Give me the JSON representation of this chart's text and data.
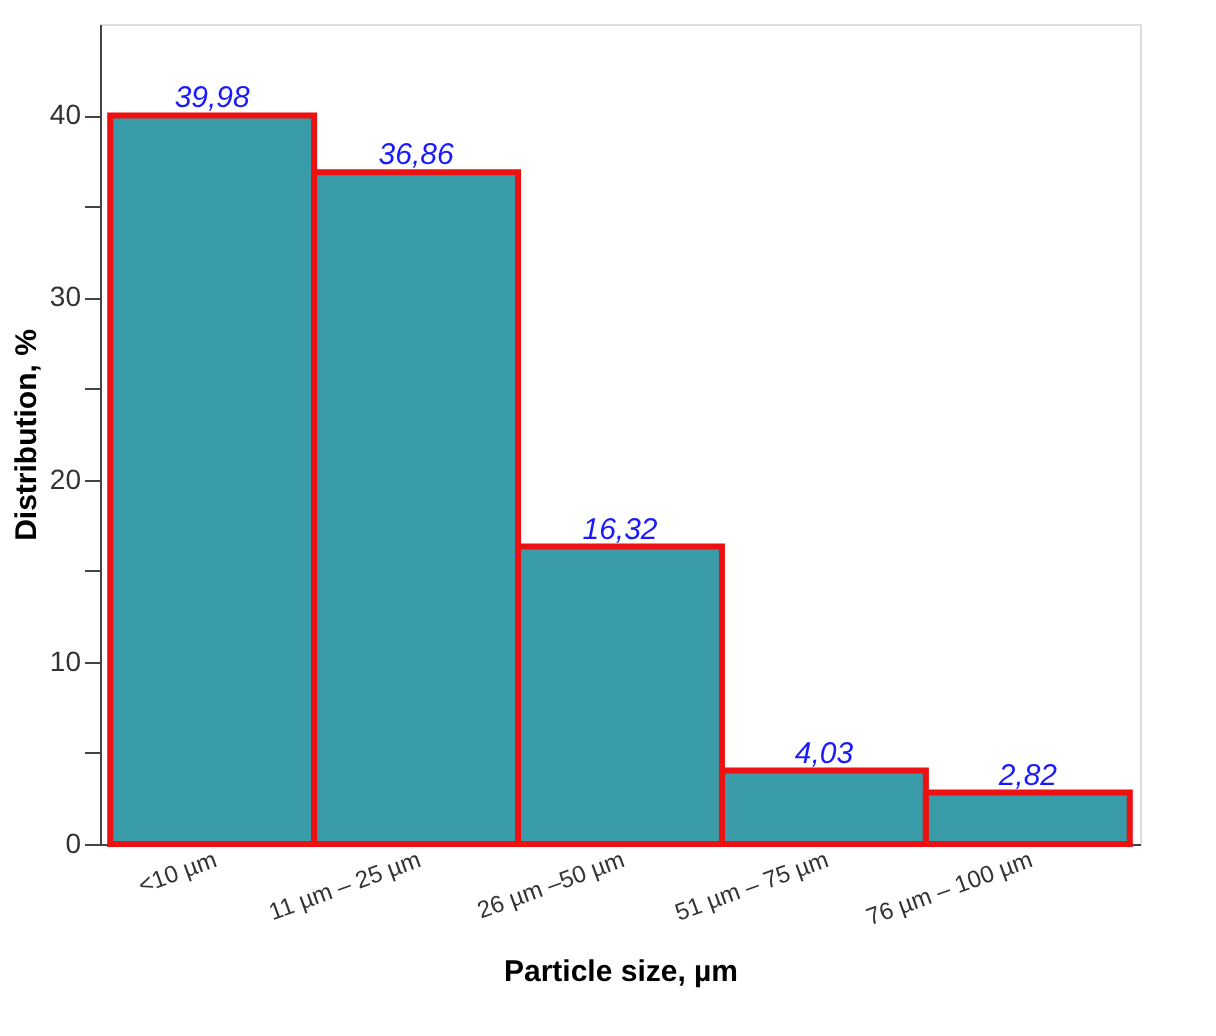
{
  "chart_data": {
    "type": "bar",
    "xlabel": "Particle size, µm",
    "ylabel": "Distribution, %",
    "categories": [
      "<10 µm",
      "11 µm – 25 µm",
      "26 µm –50 µm",
      "51 µm – 75 µm",
      "76 µm – 100 µm"
    ],
    "values": [
      39.98,
      36.86,
      16.32,
      4.03,
      2.82
    ],
    "value_labels": [
      "39,98",
      "36,86",
      "16,32",
      "4,03",
      "2,82"
    ],
    "color": "#3a9ca9",
    "ylim": [
      0,
      45
    ],
    "yticks": [
      0,
      {
        "value": 5,
        "label": null
      },
      10,
      {
        "value": 15,
        "label": null
      },
      20,
      {
        "value": 25,
        "label": null
      },
      30,
      {
        "value": 35,
        "label": null
      },
      40
    ],
    "grid": false
  }
}
